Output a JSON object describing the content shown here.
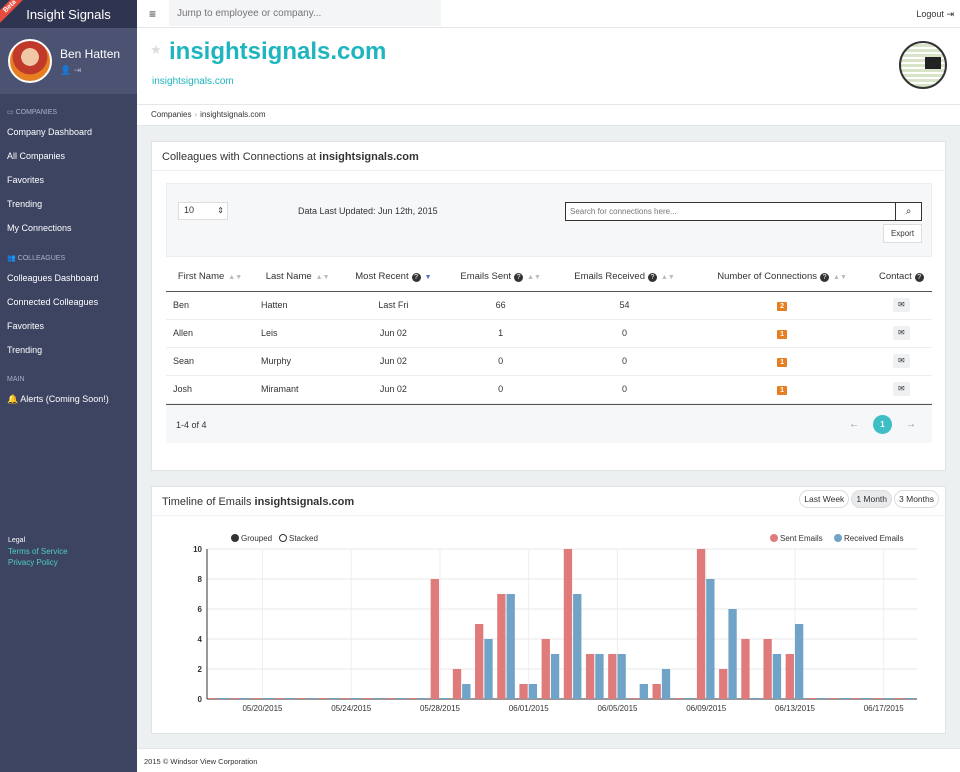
{
  "app": {
    "name": "Insight Signals",
    "beta": "Beta"
  },
  "user": {
    "name": "Ben Hatten"
  },
  "topbar": {
    "search_placeholder": "Jump to employee or company...",
    "logout": "Logout"
  },
  "sidebar": {
    "companies_section": "COMPANIES",
    "companies_items": [
      "Company Dashboard",
      "All Companies",
      "Favorites",
      "Trending",
      "My Connections"
    ],
    "colleagues_section": "COLLEAGUES",
    "colleagues_items": [
      "Colleagues Dashboard",
      "Connected Colleagues",
      "Favorites",
      "Trending"
    ],
    "main_section": "MAIN",
    "main_items": [
      "Alerts (Coming Soon!)"
    ],
    "legal": "Legal",
    "terms": "Terms of Service",
    "privacy": "Privacy Policy"
  },
  "company": {
    "title": "insightsignals.com",
    "link": "insightsignals.com"
  },
  "breadcrumb": {
    "root": "Companies",
    "current": "insightsignals.com"
  },
  "connections": {
    "title_prefix": "Colleagues with Connections at",
    "title_company": "insightsignals.com",
    "page_size": "10",
    "updated": "Data Last Updated: Jun 12th, 2015",
    "search_placeholder": "Search for connections here...",
    "export": "Export",
    "columns": [
      "First Name",
      "Last Name",
      "Most Recent",
      "Emails Sent",
      "Emails Received",
      "Number of Connections",
      "Contact"
    ],
    "rows": [
      {
        "first": "Ben",
        "last": "Hatten",
        "recent": "Last Fri",
        "sent": "66",
        "received": "54",
        "connections": "2"
      },
      {
        "first": "Allen",
        "last": "Leis",
        "recent": "Jun 02",
        "sent": "1",
        "received": "0",
        "connections": "1"
      },
      {
        "first": "Sean",
        "last": "Murphy",
        "recent": "Jun 02",
        "sent": "0",
        "received": "0",
        "connections": "1"
      },
      {
        "first": "Josh",
        "last": "Miramant",
        "recent": "Jun 02",
        "sent": "0",
        "received": "0",
        "connections": "1"
      }
    ],
    "row_count": "1-4 of 4",
    "page": "1",
    "prev": "←",
    "next": "→"
  },
  "timeline": {
    "title_prefix": "Timeline of Emails",
    "title_company": "insightsignals.com",
    "ranges": [
      "Last Week",
      "1 Month",
      "3 Months"
    ],
    "active_range": "1 Month",
    "mode_grouped": "Grouped",
    "mode_stacked": "Stacked"
  },
  "footer": {
    "copyright": "2015 © Windsor View Corporation"
  },
  "colors": {
    "sent": "#e07b7b",
    "received": "#6fa3c8",
    "accent": "#1fb5bf",
    "badge": "#e67e22"
  },
  "chart_data": {
    "type": "bar",
    "x": [
      "05/18/2015",
      "05/19/2015",
      "05/20/2015",
      "05/21/2015",
      "05/22/2015",
      "05/23/2015",
      "05/24/2015",
      "05/25/2015",
      "05/26/2015",
      "05/27/2015",
      "05/28/2015",
      "05/29/2015",
      "05/30/2015",
      "05/31/2015",
      "06/01/2015",
      "06/02/2015",
      "06/03/2015",
      "06/04/2015",
      "06/05/2015",
      "06/06/2015",
      "06/07/2015",
      "06/08/2015",
      "06/09/2015",
      "06/10/2015",
      "06/11/2015",
      "06/12/2015",
      "06/13/2015",
      "06/14/2015",
      "06/15/2015",
      "06/16/2015",
      "06/17/2015",
      "06/18/2015"
    ],
    "tick_labels": [
      "05/20/2015",
      "05/24/2015",
      "05/28/2015",
      "06/01/2015",
      "06/05/2015",
      "06/09/2015",
      "06/13/2015",
      "06/17/2015"
    ],
    "series": [
      {
        "name": "Sent Emails",
        "values": [
          0,
          0,
          0,
          0,
          0,
          0,
          0,
          0,
          0,
          0,
          8,
          2,
          5,
          7,
          1,
          4,
          10,
          3,
          3,
          0,
          1,
          0,
          10,
          2,
          4,
          4,
          3,
          0,
          0,
          0,
          0,
          0
        ]
      },
      {
        "name": "Received Emails",
        "values": [
          0,
          0,
          0,
          0,
          0,
          0,
          0,
          0,
          0,
          0,
          0,
          1,
          4,
          7,
          1,
          3,
          7,
          3,
          3,
          1,
          2,
          0,
          8,
          6,
          0,
          3,
          5,
          0,
          0,
          0,
          0,
          0
        ]
      }
    ],
    "yticks": [
      "0",
      "2",
      "4",
      "6",
      "8",
      "10"
    ],
    "ylim": [
      0,
      10
    ],
    "grid": true,
    "legend": "top-right"
  }
}
